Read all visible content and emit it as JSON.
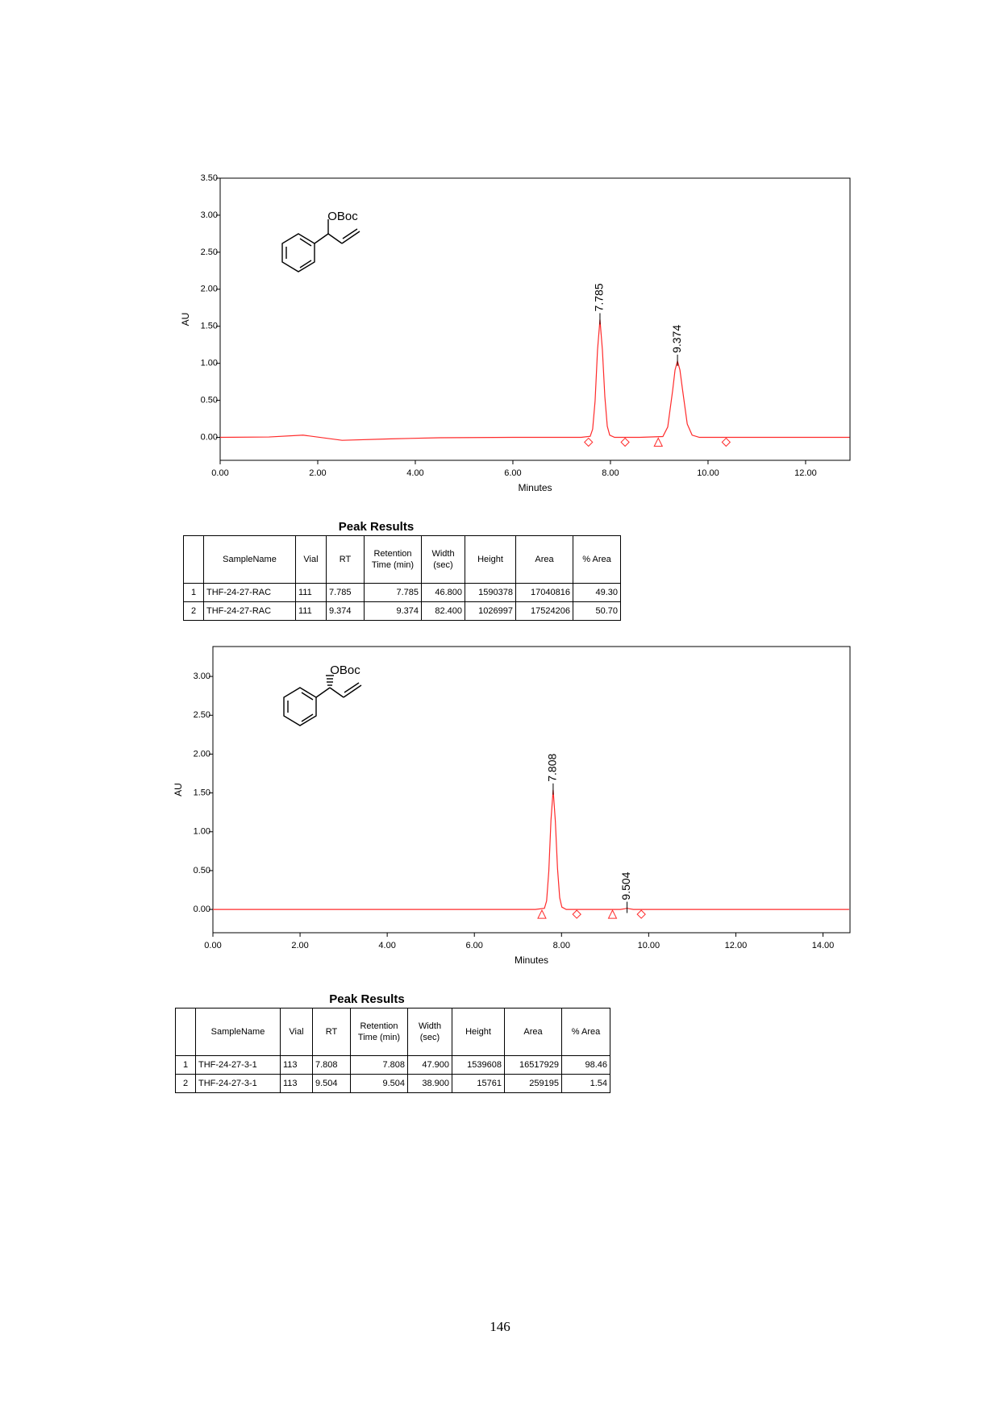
{
  "chart_data": [
    {
      "type": "line",
      "structure_label": "OBoc",
      "ylabel": "AU",
      "xlabel": "Minutes",
      "color": "#ff2a2a",
      "xlim": [
        0,
        12.91
      ],
      "ylim": [
        -0.31,
        3.5
      ],
      "xticks": [
        {
          "value": 0,
          "label": "0.00"
        },
        {
          "value": 2,
          "label": "2.00"
        },
        {
          "value": 4,
          "label": "4.00"
        },
        {
          "value": 6,
          "label": "6.00"
        },
        {
          "value": 8,
          "label": "8.00"
        },
        {
          "value": 10,
          "label": "10.00"
        },
        {
          "value": 12,
          "label": "12.00"
        }
      ],
      "yticks": [
        {
          "value": 0,
          "label": "0.00"
        },
        {
          "value": 0.5,
          "label": "0.50"
        },
        {
          "value": 1,
          "label": "1.00"
        },
        {
          "value": 1.5,
          "label": "1.50"
        },
        {
          "value": 2,
          "label": "2.00"
        },
        {
          "value": 2.5,
          "label": "2.50"
        },
        {
          "value": 3,
          "label": "3.00"
        },
        {
          "value": 3.5,
          "label": "3.50"
        }
      ],
      "x": [
        0,
        1.0,
        1.7,
        2.5,
        3.5,
        4.5,
        6.0,
        7.4,
        7.585,
        7.635,
        7.685,
        7.735,
        7.785,
        7.835,
        7.885,
        7.935,
        7.985,
        8.085,
        8.6,
        9.074,
        9.174,
        9.274,
        9.324,
        9.374,
        9.424,
        9.474,
        9.574,
        9.674,
        9.824,
        10.6,
        12.9
      ],
      "values": [
        0,
        0.005,
        0.03,
        -0.04,
        -0.02,
        -0.005,
        0,
        0,
        0.014,
        0.11,
        0.49,
        1.18,
        1.59,
        1.18,
        0.55,
        0.15,
        0.03,
        0,
        0,
        0.011,
        0.14,
        0.63,
        0.91,
        1.03,
        0.91,
        0.66,
        0.18,
        0.03,
        0,
        0,
        0
      ],
      "peak_labels": [
        7.785,
        9.374
      ],
      "markers": [
        {
          "x": 7.55,
          "shape": "diamond"
        },
        {
          "x": 8.3,
          "shape": "diamond"
        },
        {
          "x": 8.98,
          "shape": "triangle"
        },
        {
          "x": 10.37,
          "shape": "diamond"
        }
      ]
    },
    {
      "type": "line",
      "structure_label": "OBoc",
      "ylabel": "AU",
      "xlabel": "Minutes",
      "color": "#ff2a2a",
      "xlim": [
        0,
        14.62
      ],
      "ylim": [
        -0.3,
        3.385
      ],
      "xticks": [
        {
          "value": 0,
          "label": "0.00"
        },
        {
          "value": 2,
          "label": "2.00"
        },
        {
          "value": 4,
          "label": "4.00"
        },
        {
          "value": 6,
          "label": "6.00"
        },
        {
          "value": 8,
          "label": "8.00"
        },
        {
          "value": 10,
          "label": "10.00"
        },
        {
          "value": 12,
          "label": "12.00"
        },
        {
          "value": 14,
          "label": "14.00"
        }
      ],
      "yticks": [
        {
          "value": 0,
          "label": "0.00"
        },
        {
          "value": 0.5,
          "label": "0.50"
        },
        {
          "value": 1,
          "label": "1.00"
        },
        {
          "value": 1.5,
          "label": "1.50"
        },
        {
          "value": 2,
          "label": "2.00"
        },
        {
          "value": 2.5,
          "label": "2.50"
        },
        {
          "value": 3,
          "label": "3.00"
        }
      ],
      "x": [
        0,
        7.4,
        7.608,
        7.658,
        7.708,
        7.758,
        7.808,
        7.858,
        7.908,
        7.958,
        8.008,
        8.108,
        9.35,
        9.45,
        9.504,
        9.56,
        9.65,
        14.6
      ],
      "values": [
        0,
        0,
        0.014,
        0.11,
        0.49,
        1.15,
        1.54,
        1.14,
        0.53,
        0.15,
        0.03,
        0,
        0,
        0.008,
        0.016,
        0.008,
        0,
        0
      ],
      "peak_labels": [
        7.808,
        9.504
      ],
      "markers": [
        {
          "x": 7.55,
          "shape": "triangle"
        },
        {
          "x": 8.35,
          "shape": "diamond"
        },
        {
          "x": 9.17,
          "shape": "triangle"
        },
        {
          "x": 9.83,
          "shape": "diamond"
        }
      ]
    }
  ],
  "tables": [
    {
      "title": "Peak Results",
      "header": [
        "",
        "SampleName",
        "Vial",
        "RT",
        "Retention Time (min)",
        "Width (sec)",
        "Height",
        "Area",
        "% Area"
      ],
      "rows": [
        [
          "1",
          "THF-24-27-RAC",
          "111",
          "7.785",
          "7.785",
          "46.800",
          "1590378",
          "17040816",
          "49.30"
        ],
        [
          "2",
          "THF-24-27-RAC",
          "111",
          "9.374",
          "9.374",
          "82.400",
          "1026997",
          "17524206",
          "50.70"
        ]
      ]
    },
    {
      "title": "Peak Results",
      "header": [
        "",
        "SampleName",
        "Vial",
        "RT",
        "Retention Time (min)",
        "Width (sec)",
        "Height",
        "Area",
        "% Area"
      ],
      "rows": [
        [
          "1",
          "THF-24-27-3-1",
          "113",
          "7.808",
          "7.808",
          "47.900",
          "1539608",
          "16517929",
          "98.46"
        ],
        [
          "2",
          "THF-24-27-3-1",
          "113",
          "9.504",
          "9.504",
          "38.900",
          "15761",
          "259195",
          "1.54"
        ]
      ]
    }
  ],
  "page_number": "146"
}
